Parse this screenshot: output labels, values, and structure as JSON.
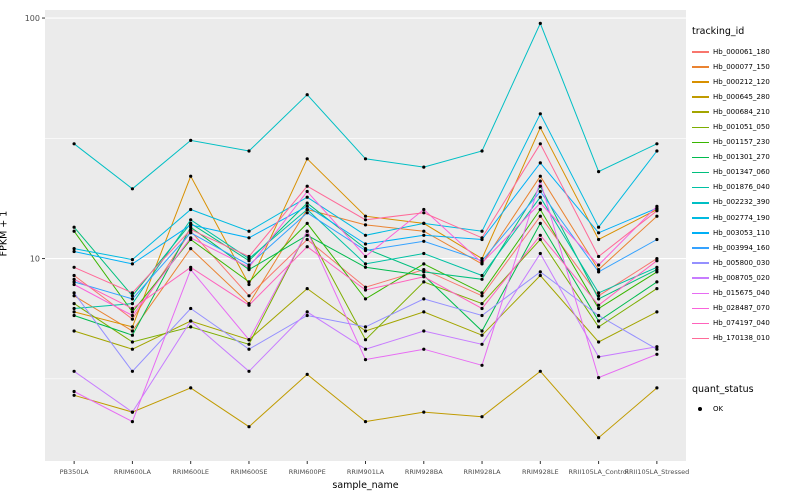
{
  "chart_data": {
    "type": "line",
    "title": "",
    "xlabel": "sample_name",
    "ylabel": "FPKM + 1",
    "y_scale": "log10",
    "ylim": [
      1.44,
      108
    ],
    "y_major_ticks": [
      10,
      100
    ],
    "y_minor_ticks": [
      3.162,
      31.62
    ],
    "grid": true,
    "panel_background": "#EBEBEB",
    "gridline_color": "#FFFFFF",
    "marker": "black-point",
    "categories": [
      "PB350LA",
      "RRIM600LA",
      "RRIM600LE",
      "RRIM600SE",
      "RRIM600PE",
      "RRIM901LA",
      "RRIM928BA",
      "RRIM928LA",
      "RRIM928LE",
      "RRII105LA_Control",
      "RRII105LA_Stressed"
    ],
    "series": [
      {
        "name": "Hb_000061_180",
        "color": "#F8766D",
        "values": [
          8.5,
          5.6,
          13.0,
          7.0,
          12.0,
          7.6,
          9.0,
          7.0,
          15.0,
          7.0,
          10.0
        ]
      },
      {
        "name": "Hb_000077_150",
        "color": "#EA8331",
        "values": [
          7.0,
          5.0,
          11.0,
          6.5,
          16.0,
          13.8,
          13.0,
          9.5,
          22.0,
          9.0,
          15.0
        ]
      },
      {
        "name": "Hb_000212_120",
        "color": "#D89000",
        "values": [
          6.0,
          5.2,
          22.0,
          7.8,
          26.0,
          15.0,
          14.0,
          10.0,
          35.0,
          12.0,
          16.0
        ]
      },
      {
        "name": "Hb_000645_280",
        "color": "#C09B00",
        "values": [
          2.7,
          2.3,
          2.9,
          2.0,
          3.3,
          2.1,
          2.3,
          2.2,
          3.4,
          1.8,
          2.9
        ]
      },
      {
        "name": "Hb_000684_210",
        "color": "#A3A500",
        "values": [
          5.0,
          4.2,
          5.5,
          4.6,
          7.5,
          5.0,
          6.0,
          4.8,
          8.5,
          4.5,
          6.0
        ]
      },
      {
        "name": "Hb_001051_050",
        "color": "#7CAE00",
        "values": [
          6.5,
          4.5,
          5.2,
          4.4,
          13.0,
          4.6,
          8.0,
          6.5,
          12.0,
          5.2,
          7.5
        ]
      },
      {
        "name": "Hb_001157_230",
        "color": "#39B600",
        "values": [
          13.0,
          6.0,
          12.0,
          8.0,
          14.0,
          6.8,
          9.5,
          7.2,
          16.0,
          6.2,
          8.8
        ]
      },
      {
        "name": "Hb_001301_270",
        "color": "#00BB4E",
        "values": [
          5.8,
          4.8,
          13.5,
          9.0,
          12.5,
          9.2,
          8.5,
          5.0,
          14.0,
          5.5,
          8.0
        ]
      },
      {
        "name": "Hb_001347_060",
        "color": "#00BF7D",
        "values": [
          13.5,
          7.0,
          14.0,
          9.8,
          17.0,
          11.0,
          8.8,
          8.2,
          20.0,
          6.8,
          9.0
        ]
      },
      {
        "name": "Hb_001876_040",
        "color": "#00C1A3",
        "values": [
          6.2,
          6.5,
          14.5,
          10.0,
          16.0,
          9.5,
          10.5,
          8.5,
          18.0,
          7.2,
          9.2
        ]
      },
      {
        "name": "Hb_002232_390",
        "color": "#00BFC4",
        "values": [
          30.0,
          19.5,
          31.0,
          28.0,
          48.0,
          26.0,
          24.0,
          28.0,
          95.0,
          23.0,
          30.0
        ]
      },
      {
        "name": "Hb_002774_190",
        "color": "#00BAE0",
        "values": [
          11.0,
          9.9,
          16.0,
          13.0,
          18.0,
          12.5,
          14.0,
          13.0,
          40.0,
          13.5,
          28.0
        ]
      },
      {
        "name": "Hb_003053_110",
        "color": "#00B0F6",
        "values": [
          10.7,
          9.5,
          13.8,
          12.2,
          16.5,
          11.5,
          12.5,
          12.0,
          25.0,
          12.8,
          16.2
        ]
      },
      {
        "name": "Hb_003994_160",
        "color": "#35A2FF",
        "values": [
          8.0,
          6.8,
          12.8,
          9.4,
          15.5,
          10.8,
          11.8,
          9.8,
          19.0,
          8.8,
          12.0
        ]
      },
      {
        "name": "Hb_005800_030",
        "color": "#9590FF",
        "values": [
          7.2,
          3.4,
          6.2,
          4.2,
          5.8,
          5.2,
          6.8,
          5.8,
          8.8,
          5.8,
          4.2
        ]
      },
      {
        "name": "Hb_008705_020",
        "color": "#C77CFF",
        "values": [
          3.4,
          2.3,
          5.5,
          3.4,
          6.0,
          4.2,
          5.0,
          4.4,
          10.5,
          3.9,
          4.3
        ]
      },
      {
        "name": "Hb_015675_040",
        "color": "#E76BF3",
        "values": [
          2.8,
          2.1,
          9.0,
          4.6,
          13.0,
          3.8,
          4.2,
          3.6,
          21.0,
          3.2,
          4.0
        ]
      },
      {
        "name": "Hb_028487_070",
        "color": "#FA62DB",
        "values": [
          7.8,
          5.8,
          12.2,
          9.2,
          19.0,
          10.2,
          16.0,
          9.6,
          17.0,
          9.4,
          16.5
        ]
      },
      {
        "name": "Hb_074197_040",
        "color": "#FF62BC",
        "values": [
          8.2,
          6.2,
          9.2,
          6.4,
          11.2,
          7.4,
          8.4,
          6.2,
          12.5,
          6.4,
          9.8
        ]
      },
      {
        "name": "Hb_170138_010",
        "color": "#FF6A98",
        "values": [
          9.2,
          7.2,
          13.2,
          10.2,
          20.0,
          14.5,
          15.5,
          12.2,
          30.0,
          10.2,
          15.8
        ]
      }
    ],
    "legend": {
      "position": "right",
      "color_title": "tracking_id",
      "shape_title": "quant_status",
      "shape_items": [
        {
          "label": "OK",
          "marker": "black-point"
        }
      ]
    },
    "y_tick_labels": [
      "100",
      "10"
    ]
  }
}
